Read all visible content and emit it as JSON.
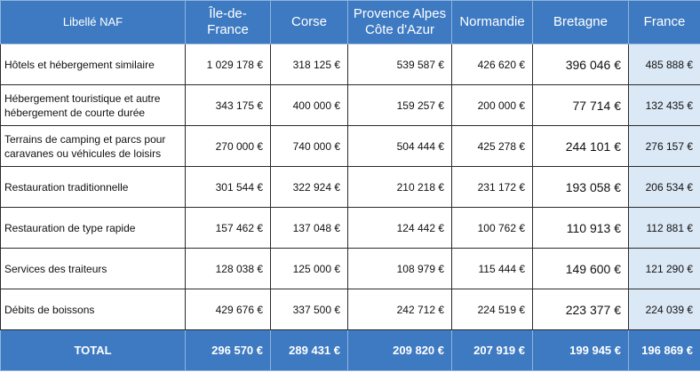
{
  "headers": [
    "Libellé NAF",
    "Île-de-France",
    "Corse",
    "Provence Alpes\nCôte d'Azur",
    "Normandie",
    "Bretagne",
    "France"
  ],
  "rows": [
    {
      "label": "Hôtels et hébergement similaire",
      "values": [
        "1 029 178 €",
        "318 125 €",
        "539 587 €",
        "426 620 €",
        "396 046 €",
        "485 888 €"
      ]
    },
    {
      "label": "Hébergement touristique et autre hébergement de courte durée",
      "values": [
        "343 175 €",
        "400 000 €",
        "159 257 €",
        "200 000 €",
        "77 714 €",
        "132 435 €"
      ]
    },
    {
      "label": "Terrains de camping et parcs pour caravanes ou véhicules de loisirs",
      "values": [
        "270 000 €",
        "740 000 €",
        "504 444 €",
        "425 278 €",
        "244 101 €",
        "276 157 €"
      ]
    },
    {
      "label": "Restauration traditionnelle",
      "values": [
        "301 544 €",
        "322 924 €",
        "210 218 €",
        "231 172 €",
        "193 058 €",
        "206 534 €"
      ]
    },
    {
      "label": "Restauration de type rapide",
      "values": [
        "157 462 €",
        "137 048 €",
        "124 442 €",
        "100 762 €",
        "110 913 €",
        "112 881 €"
      ]
    },
    {
      "label": "Services des traiteurs",
      "values": [
        "128 038 €",
        "125 000 €",
        "108 979 €",
        "115 444 €",
        "149 600 €",
        "121 290 €"
      ]
    },
    {
      "label": "Débits de boissons",
      "values": [
        "429 676 €",
        "337 500 €",
        "242 712 €",
        "224 519 €",
        "223 377 €",
        "224 039 €"
      ]
    }
  ],
  "total": {
    "label": "TOTAL",
    "values": [
      "296 570 €",
      "289 431 €",
      "209 820 €",
      "207 919 €",
      "199 945 €",
      "196 869 €"
    ]
  },
  "colors": {
    "header_bg": "#3e7ac2",
    "france_col_bg": "#dbe8f5",
    "header_text": "#ffffff"
  }
}
